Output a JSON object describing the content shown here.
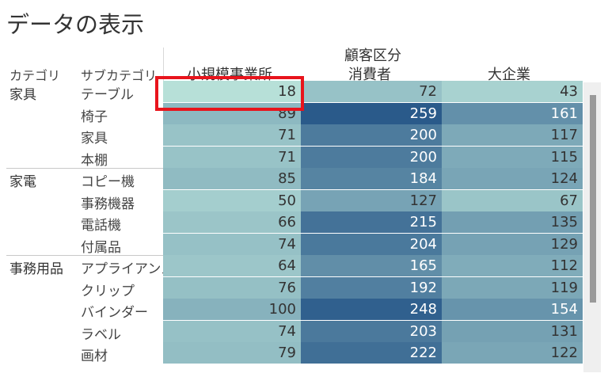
{
  "title": "データの表示",
  "header": {
    "group_title": "顧客区分",
    "columns": [
      "小規模事業所",
      "消費者",
      "大企業"
    ],
    "row_headers": [
      "カテゴリ",
      "サブカテゴリ"
    ]
  },
  "colors": {
    "highlight_border": "#e8141c",
    "heat_light": "#b7e0d8",
    "heat_dark": "#2a5a8a"
  },
  "rows": [
    {
      "category": "家具",
      "sub": "テーブル",
      "values": [
        18,
        72,
        43
      ]
    },
    {
      "category": "",
      "sub": "椅子",
      "values": [
        89,
        259,
        161
      ]
    },
    {
      "category": "",
      "sub": "家具",
      "values": [
        71,
        200,
        117
      ]
    },
    {
      "category": "",
      "sub": "本棚",
      "values": [
        71,
        200,
        115
      ]
    },
    {
      "category": "家電",
      "sub": "コピー機",
      "values": [
        85,
        184,
        124
      ]
    },
    {
      "category": "",
      "sub": "事務機器",
      "values": [
        50,
        127,
        67
      ]
    },
    {
      "category": "",
      "sub": "電話機",
      "values": [
        66,
        215,
        135
      ]
    },
    {
      "category": "",
      "sub": "付属品",
      "values": [
        74,
        204,
        129
      ]
    },
    {
      "category": "事務用品",
      "sub": "アプライアンス",
      "values": [
        64,
        165,
        112
      ]
    },
    {
      "category": "",
      "sub": "クリップ",
      "values": [
        76,
        192,
        119
      ]
    },
    {
      "category": "",
      "sub": "バインダー",
      "values": [
        100,
        248,
        154
      ]
    },
    {
      "category": "",
      "sub": "ラベル",
      "values": [
        74,
        203,
        131
      ]
    },
    {
      "category": "",
      "sub": "画材",
      "values": [
        79,
        222,
        122
      ]
    }
  ],
  "highlighted_cell": {
    "row": 0,
    "col": 0
  }
}
